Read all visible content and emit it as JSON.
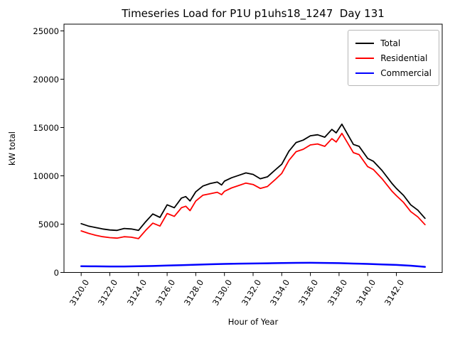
{
  "chart_data": {
    "type": "line",
    "title": "Timeseries Load for P1U p1uhs18_1247  Day 131",
    "xlabel": "Hour of Year",
    "ylabel": "kW total",
    "xlim": [
      3118.8,
      3145.2
    ],
    "ylim": [
      0,
      25700
    ],
    "grid": false,
    "legend_position": "upper right",
    "x_tick_values": [
      3120,
      3122,
      3124,
      3126,
      3128,
      3130,
      3132,
      3134,
      3136,
      3138,
      3140,
      3142
    ],
    "x_tick_labels": [
      "3120.0",
      "3122.0",
      "3124.0",
      "3126.0",
      "3128.0",
      "3130.0",
      "3132.0",
      "3134.0",
      "3136.0",
      "3138.0",
      "3140.0",
      "3142.0"
    ],
    "y_tick_values": [
      0,
      5000,
      10000,
      15000,
      20000,
      25000
    ],
    "y_tick_labels": [
      "0",
      "5000",
      "10000",
      "15000",
      "20000",
      "25000"
    ],
    "series": [
      {
        "name": "Total",
        "color": "#000000",
        "points": [
          [
            3120,
            5050
          ],
          [
            3120.5,
            4800
          ],
          [
            3121,
            4650
          ],
          [
            3121.5,
            4500
          ],
          [
            3122,
            4400
          ],
          [
            3122.5,
            4350
          ],
          [
            3123,
            4550
          ],
          [
            3123.5,
            4500
          ],
          [
            3124,
            4350
          ],
          [
            3124.5,
            5250
          ],
          [
            3125,
            6050
          ],
          [
            3125.5,
            5700
          ],
          [
            3126,
            7000
          ],
          [
            3126.5,
            6700
          ],
          [
            3127,
            7700
          ],
          [
            3127.3,
            7850
          ],
          [
            3127.6,
            7400
          ],
          [
            3128,
            8350
          ],
          [
            3128.5,
            8950
          ],
          [
            3129,
            9200
          ],
          [
            3129.5,
            9350
          ],
          [
            3129.8,
            9050
          ],
          [
            3130,
            9450
          ],
          [
            3130.5,
            9800
          ],
          [
            3131,
            10050
          ],
          [
            3131.5,
            10300
          ],
          [
            3132,
            10150
          ],
          [
            3132.5,
            9700
          ],
          [
            3133,
            9900
          ],
          [
            3133.5,
            10550
          ],
          [
            3134,
            11200
          ],
          [
            3134.5,
            12550
          ],
          [
            3135,
            13450
          ],
          [
            3135.5,
            13700
          ],
          [
            3136,
            14150
          ],
          [
            3136.5,
            14250
          ],
          [
            3137,
            14000
          ],
          [
            3137.5,
            14800
          ],
          [
            3137.8,
            14450
          ],
          [
            3138.2,
            15350
          ],
          [
            3139,
            13250
          ],
          [
            3139.4,
            13050
          ],
          [
            3140,
            11800
          ],
          [
            3140.4,
            11500
          ],
          [
            3141,
            10550
          ],
          [
            3141.7,
            9200
          ],
          [
            3142,
            8700
          ],
          [
            3142.5,
            7980
          ],
          [
            3143,
            7000
          ],
          [
            3143.5,
            6450
          ],
          [
            3144,
            5600
          ]
        ]
      },
      {
        "name": "Residential",
        "color": "#ff0000",
        "points": [
          [
            3120,
            4300
          ],
          [
            3120.5,
            4050
          ],
          [
            3121,
            3850
          ],
          [
            3121.5,
            3700
          ],
          [
            3122,
            3600
          ],
          [
            3122.5,
            3550
          ],
          [
            3123,
            3700
          ],
          [
            3123.5,
            3650
          ],
          [
            3124,
            3500
          ],
          [
            3124.5,
            4350
          ],
          [
            3125,
            5100
          ],
          [
            3125.5,
            4800
          ],
          [
            3126,
            6100
          ],
          [
            3126.5,
            5800
          ],
          [
            3127,
            6700
          ],
          [
            3127.3,
            6850
          ],
          [
            3127.6,
            6400
          ],
          [
            3128,
            7400
          ],
          [
            3128.5,
            8000
          ],
          [
            3129,
            8150
          ],
          [
            3129.5,
            8300
          ],
          [
            3129.8,
            8050
          ],
          [
            3130,
            8400
          ],
          [
            3130.5,
            8750
          ],
          [
            3131,
            9000
          ],
          [
            3131.5,
            9250
          ],
          [
            3132,
            9100
          ],
          [
            3132.5,
            8700
          ],
          [
            3133,
            8900
          ],
          [
            3133.5,
            9550
          ],
          [
            3134,
            10250
          ],
          [
            3134.5,
            11600
          ],
          [
            3135,
            12500
          ],
          [
            3135.5,
            12750
          ],
          [
            3136,
            13200
          ],
          [
            3136.5,
            13300
          ],
          [
            3137,
            13050
          ],
          [
            3137.5,
            13850
          ],
          [
            3137.8,
            13500
          ],
          [
            3138.2,
            14400
          ],
          [
            3139,
            12400
          ],
          [
            3139.4,
            12200
          ],
          [
            3140,
            10950
          ],
          [
            3140.4,
            10650
          ],
          [
            3141,
            9700
          ],
          [
            3141.7,
            8400
          ],
          [
            3142,
            7950
          ],
          [
            3142.5,
            7250
          ],
          [
            3143,
            6300
          ],
          [
            3143.5,
            5750
          ],
          [
            3144,
            4950
          ]
        ]
      },
      {
        "name": "Commercial",
        "color": "#0000ff",
        "points": [
          [
            3120,
            640
          ],
          [
            3121,
            630
          ],
          [
            3122,
            620
          ],
          [
            3123,
            620
          ],
          [
            3124,
            640
          ],
          [
            3125,
            670
          ],
          [
            3126,
            710
          ],
          [
            3127,
            750
          ],
          [
            3128,
            800
          ],
          [
            3129,
            845
          ],
          [
            3130,
            880
          ],
          [
            3131,
            910
          ],
          [
            3132,
            930
          ],
          [
            3133,
            950
          ],
          [
            3134,
            975
          ],
          [
            3135,
            995
          ],
          [
            3136,
            1000
          ],
          [
            3137,
            985
          ],
          [
            3138,
            960
          ],
          [
            3139,
            920
          ],
          [
            3140,
            880
          ],
          [
            3141,
            830
          ],
          [
            3142,
            780
          ],
          [
            3143,
            700
          ],
          [
            3144,
            580
          ]
        ]
      }
    ]
  }
}
